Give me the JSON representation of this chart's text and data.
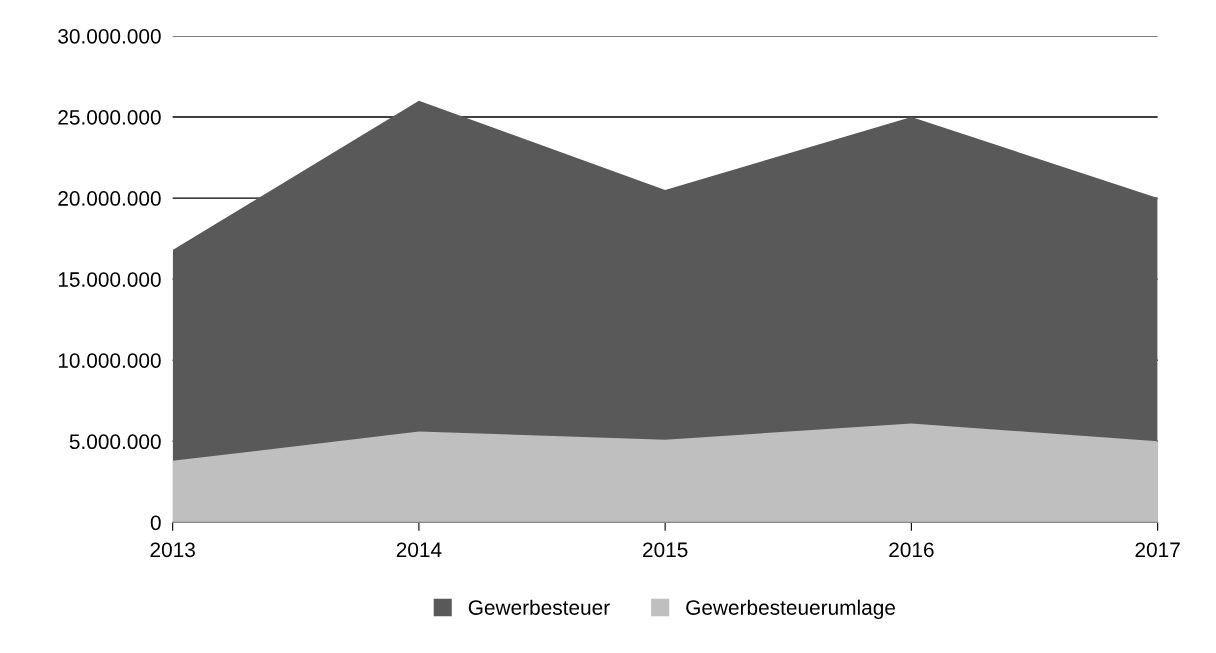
{
  "chart_data": {
    "type": "area",
    "x": [
      2013,
      2014,
      2015,
      2016,
      2017
    ],
    "series": [
      {
        "name": "Gewerbesteuer",
        "color": "#595959",
        "values": [
          16800000,
          26000000,
          20500000,
          25000000,
          20000000
        ]
      },
      {
        "name": "Gewerbesteuerumlage",
        "color": "#bfbfbf",
        "values": [
          3800000,
          5600000,
          5100000,
          6100000,
          5000000
        ]
      }
    ],
    "xlim": [
      2013,
      2017
    ],
    "xticks": [
      2013,
      2014,
      2015,
      2016,
      2017
    ],
    "ylim": [
      0,
      30000000
    ],
    "yticks": [
      {
        "value": 0,
        "label": "0"
      },
      {
        "value": 5000000,
        "label": "5.000.000"
      },
      {
        "value": 10000000,
        "label": "10.000.000"
      },
      {
        "value": 15000000,
        "label": "15.000.000"
      },
      {
        "value": 20000000,
        "label": "20.000.000"
      },
      {
        "value": 25000000,
        "label": "25.000.000"
      },
      {
        "value": 30000000,
        "label": "30.000.000"
      }
    ],
    "grid": "y",
    "legend": "bottom"
  }
}
